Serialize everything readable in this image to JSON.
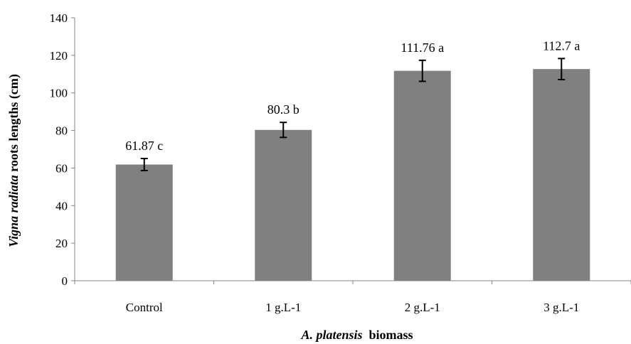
{
  "chart_data": {
    "type": "bar",
    "categories": [
      "Control",
      "1 g.L-1",
      "2 g.L-1",
      "3 g.L-1"
    ],
    "values": [
      61.87,
      80.3,
      111.76,
      112.7
    ],
    "error": [
      3.2,
      4.0,
      5.6,
      5.6
    ],
    "data_labels": [
      "61.87 c",
      "80.3 b",
      "111.76 a",
      "112.7 a"
    ],
    "ylabel_italic": "Vigna radiata",
    "ylabel_rest": " roots lengths (cm)",
    "xlabel_italic": "A. platensis",
    "xlabel_rest": "  biomass",
    "ylim": [
      0,
      140
    ],
    "yticks": [
      0,
      20,
      40,
      60,
      80,
      100,
      120,
      140
    ],
    "grid": false,
    "legend": "none",
    "bar_color": "#808080",
    "axis_color": "#868686"
  }
}
